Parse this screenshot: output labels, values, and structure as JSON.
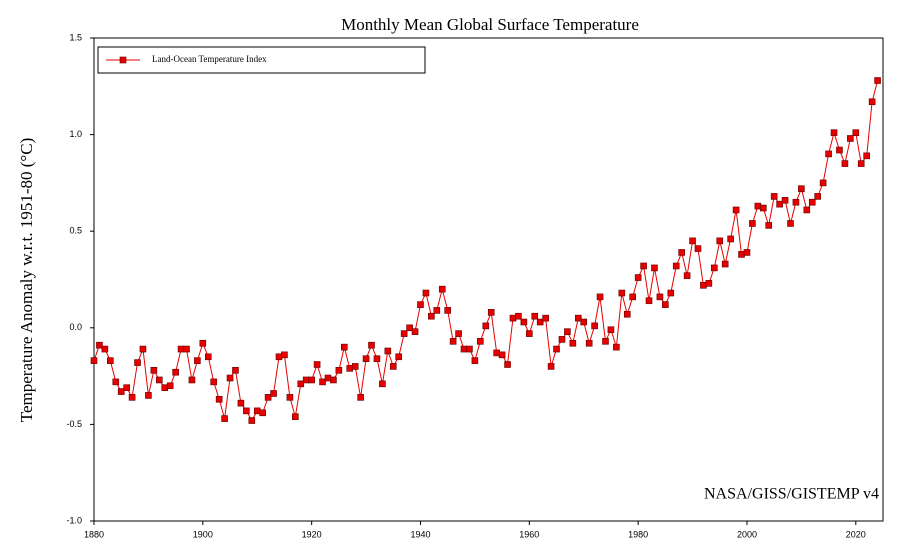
{
  "chart_data": {
    "type": "line",
    "title": "Monthly Mean Global Surface Temperature",
    "y_label": "Temperature Anomaly w.r.t. 1951-80 (°C)",
    "annotation": "NASA/GISS/GISTEMP v4",
    "legend_position": "upper left",
    "xlim": [
      1880,
      2025
    ],
    "ylim": [
      -1.0,
      1.5
    ],
    "xticks": [
      1880,
      1900,
      1920,
      1940,
      1960,
      1980,
      2000,
      2020
    ],
    "yticks": [
      {
        "value": -1.0,
        "label": "-1.0"
      },
      -0.5,
      {
        "value": 0,
        "label": "0.0"
      },
      0.5,
      {
        "value": 1.0,
        "label": "1.0"
      },
      1.5
    ],
    "x": [
      1880,
      1881,
      1882,
      1883,
      1884,
      1885,
      1886,
      1887,
      1888,
      1889,
      1890,
      1891,
      1892,
      1893,
      1894,
      1895,
      1896,
      1897,
      1898,
      1899,
      1900,
      1901,
      1902,
      1903,
      1904,
      1905,
      1906,
      1907,
      1908,
      1909,
      1910,
      1911,
      1912,
      1913,
      1914,
      1915,
      1916,
      1917,
      1918,
      1919,
      1920,
      1921,
      1922,
      1923,
      1924,
      1925,
      1926,
      1927,
      1928,
      1929,
      1930,
      1931,
      1932,
      1933,
      1934,
      1935,
      1936,
      1937,
      1938,
      1939,
      1940,
      1941,
      1942,
      1943,
      1944,
      1945,
      1946,
      1947,
      1948,
      1949,
      1950,
      1951,
      1952,
      1953,
      1954,
      1955,
      1956,
      1957,
      1958,
      1959,
      1960,
      1961,
      1962,
      1963,
      1964,
      1965,
      1966,
      1967,
      1968,
      1969,
      1970,
      1971,
      1972,
      1973,
      1974,
      1975,
      1976,
      1977,
      1978,
      1979,
      1980,
      1981,
      1982,
      1983,
      1984,
      1985,
      1986,
      1987,
      1988,
      1989,
      1990,
      1991,
      1992,
      1993,
      1994,
      1995,
      1996,
      1997,
      1998,
      1999,
      2000,
      2001,
      2002,
      2003,
      2004,
      2005,
      2006,
      2007,
      2008,
      2009,
      2010,
      2011,
      2012,
      2013,
      2014,
      2015,
      2016,
      2017,
      2018,
      2019,
      2020,
      2021,
      2022,
      2023,
      2024
    ],
    "series": [
      {
        "name": "Land-Ocean Temperature Index",
        "color": "#e60000",
        "values": [
          -0.17,
          -0.09,
          -0.11,
          -0.17,
          -0.28,
          -0.33,
          -0.31,
          -0.36,
          -0.18,
          -0.11,
          -0.35,
          -0.22,
          -0.27,
          -0.31,
          -0.3,
          -0.23,
          -0.11,
          -0.11,
          -0.27,
          -0.17,
          -0.08,
          -0.15,
          -0.28,
          -0.37,
          -0.47,
          -0.26,
          -0.22,
          -0.39,
          -0.43,
          -0.48,
          -0.43,
          -0.44,
          -0.36,
          -0.34,
          -0.15,
          -0.14,
          -0.36,
          -0.46,
          -0.29,
          -0.27,
          -0.27,
          -0.19,
          -0.28,
          -0.26,
          -0.27,
          -0.22,
          -0.1,
          -0.21,
          -0.2,
          -0.36,
          -0.16,
          -0.09,
          -0.16,
          -0.29,
          -0.12,
          -0.2,
          -0.15,
          -0.03,
          0.0,
          -0.02,
          0.12,
          0.18,
          0.06,
          0.09,
          0.2,
          0.09,
          -0.07,
          -0.03,
          -0.11,
          -0.11,
          -0.17,
          -0.07,
          0.01,
          0.08,
          -0.13,
          -0.14,
          -0.19,
          0.05,
          0.06,
          0.03,
          -0.03,
          0.06,
          0.03,
          0.05,
          -0.2,
          -0.11,
          -0.06,
          -0.02,
          -0.08,
          0.05,
          0.03,
          -0.08,
          0.01,
          0.16,
          -0.07,
          -0.01,
          -0.1,
          0.18,
          0.07,
          0.16,
          0.26,
          0.32,
          0.14,
          0.31,
          0.16,
          0.12,
          0.18,
          0.32,
          0.39,
          0.27,
          0.45,
          0.41,
          0.22,
          0.23,
          0.31,
          0.45,
          0.33,
          0.46,
          0.61,
          0.38,
          0.39,
          0.54,
          0.63,
          0.62,
          0.53,
          0.68,
          0.64,
          0.66,
          0.54,
          0.65,
          0.72,
          0.61,
          0.65,
          0.68,
          0.75,
          0.9,
          1.01,
          0.92,
          0.85,
          0.98,
          1.01,
          0.85,
          0.89,
          1.17,
          1.28
        ]
      }
    ]
  }
}
